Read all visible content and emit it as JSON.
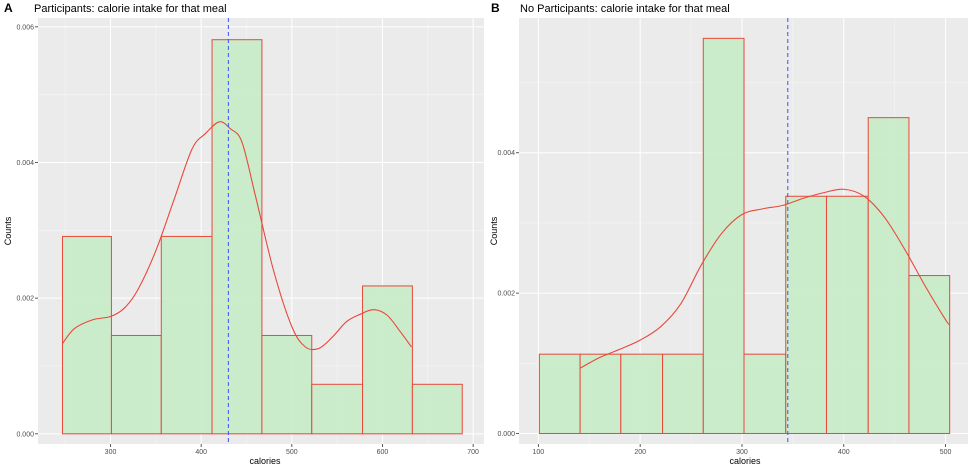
{
  "chart_data": [
    {
      "type": "bar",
      "tag": "A",
      "title": "Participants: calorie intake for that meal",
      "xlabel": "calories",
      "ylabel": "Counts",
      "xlim": [
        220,
        712
      ],
      "ylim": [
        -0.00015,
        0.00613
      ],
      "xticks": [
        300,
        400,
        500,
        600,
        700
      ],
      "yticks": [
        0.0,
        0.002,
        0.004,
        0.006
      ],
      "ytick_labels": [
        "0.000",
        "0.002",
        "0.004",
        "0.006"
      ],
      "bins": [
        {
          "x0": 247,
          "x1": 301,
          "value": 0.00291
        },
        {
          "x0": 301,
          "x1": 356,
          "value": 0.00145
        },
        {
          "x0": 356,
          "x1": 412,
          "value": 0.00291
        },
        {
          "x0": 412,
          "x1": 467,
          "value": 0.00581
        },
        {
          "x0": 467,
          "x1": 522,
          "value": 0.00145
        },
        {
          "x0": 522,
          "x1": 578,
          "value": 0.00073
        },
        {
          "x0": 578,
          "x1": 633,
          "value": 0.00218
        },
        {
          "x0": 633,
          "x1": 688,
          "value": 0.00073
        }
      ],
      "density": {
        "x": [
          247,
          260,
          280,
          300,
          315,
          330,
          350,
          370,
          390,
          405,
          420,
          432,
          445,
          460,
          480,
          500,
          515,
          530,
          545,
          560,
          575,
          590,
          605,
          620,
          632
        ],
        "y": [
          0.00133,
          0.00155,
          0.00168,
          0.00173,
          0.00185,
          0.00212,
          0.0027,
          0.00345,
          0.0042,
          0.00443,
          0.0046,
          0.0045,
          0.0043,
          0.0035,
          0.0024,
          0.00158,
          0.00128,
          0.00126,
          0.00143,
          0.00165,
          0.00176,
          0.00183,
          0.00175,
          0.0015,
          0.00128
        ]
      },
      "mean": 430
    },
    {
      "type": "bar",
      "tag": "B",
      "title": "No Participants: calorie intake for that meal",
      "xlabel": "calories",
      "ylabel": "Counts",
      "xlim": [
        81,
        522
      ],
      "ylim": [
        -0.00015,
        0.00592
      ],
      "xticks": [
        100,
        200,
        300,
        400,
        500
      ],
      "yticks": [
        0.0,
        0.002,
        0.004
      ],
      "ytick_labels": [
        "0.000",
        "0.002",
        "0.004"
      ],
      "bins": [
        {
          "x0": 101,
          "x1": 141,
          "value": 0.00113
        },
        {
          "x0": 141,
          "x1": 181,
          "value": 0.00113
        },
        {
          "x0": 181,
          "x1": 222,
          "value": 0.00113
        },
        {
          "x0": 222,
          "x1": 262,
          "value": 0.00113
        },
        {
          "x0": 262,
          "x1": 302,
          "value": 0.00563
        },
        {
          "x0": 302,
          "x1": 343,
          "value": 0.00113
        },
        {
          "x0": 343,
          "x1": 383,
          "value": 0.00338
        },
        {
          "x0": 383,
          "x1": 424,
          "value": 0.00338
        },
        {
          "x0": 424,
          "x1": 464,
          "value": 0.0045
        },
        {
          "x0": 464,
          "x1": 504,
          "value": 0.00225
        }
      ],
      "density": {
        "x": [
          141,
          160,
          180,
          200,
          220,
          240,
          260,
          280,
          300,
          320,
          340,
          360,
          380,
          400,
          420,
          440,
          460,
          480,
          500,
          504
        ],
        "y": [
          0.00093,
          0.00108,
          0.0012,
          0.00133,
          0.00152,
          0.00185,
          0.0024,
          0.00285,
          0.00312,
          0.0032,
          0.00325,
          0.00335,
          0.00343,
          0.00348,
          0.00338,
          0.00308,
          0.00262,
          0.0021,
          0.00162,
          0.00155
        ]
      },
      "mean": 345
    }
  ]
}
